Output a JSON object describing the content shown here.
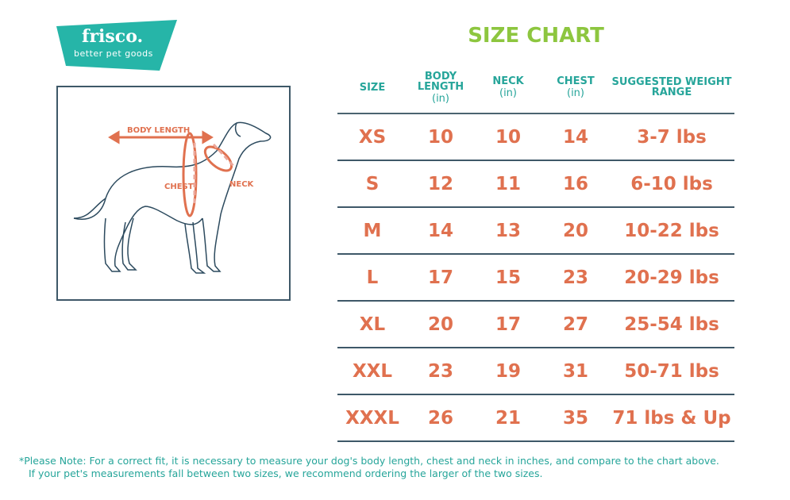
{
  "logo": {
    "name": "frisco.",
    "tagline": "better pet goods",
    "color": "#26b5a8"
  },
  "diagram": {
    "labels": {
      "body_length": "BODY LENGTH",
      "chest": "CHEST",
      "neck": "NECK"
    },
    "accent": "#e0714f"
  },
  "title": "SIZE CHART",
  "table": {
    "headers": [
      {
        "label": "SIZE",
        "unit": ""
      },
      {
        "label": "BODY LENGTH",
        "unit": "(in)"
      },
      {
        "label": "NECK",
        "unit": "(in)"
      },
      {
        "label": "CHEST",
        "unit": "(in)"
      },
      {
        "label": "SUGGESTED WEIGHT RANGE",
        "unit": ""
      }
    ],
    "rows": [
      [
        "XS",
        "10",
        "10",
        "14",
        "3-7 lbs"
      ],
      [
        "S",
        "12",
        "11",
        "16",
        "6-10 lbs"
      ],
      [
        "M",
        "14",
        "13",
        "20",
        "10-22 lbs"
      ],
      [
        "L",
        "17",
        "15",
        "23",
        "20-29 lbs"
      ],
      [
        "XL",
        "20",
        "17",
        "27",
        "25-54 lbs"
      ],
      [
        "XXL",
        "23",
        "19",
        "31",
        "50-71 lbs"
      ],
      [
        "XXXL",
        "26",
        "21",
        "35",
        "71 lbs & Up"
      ]
    ]
  },
  "note": {
    "line1": "*Please Note: For a correct fit, it is necessary to measure your dog's body length, chest and neck in inches, and compare to the chart above.",
    "line2": "If your pet's measurements fall between two sizes, we recommend ordering the larger of the two sizes."
  },
  "colors": {
    "title": "#8dc63f",
    "header": "#26a59a",
    "values": "#e0714f",
    "lines": "#3e5868"
  }
}
